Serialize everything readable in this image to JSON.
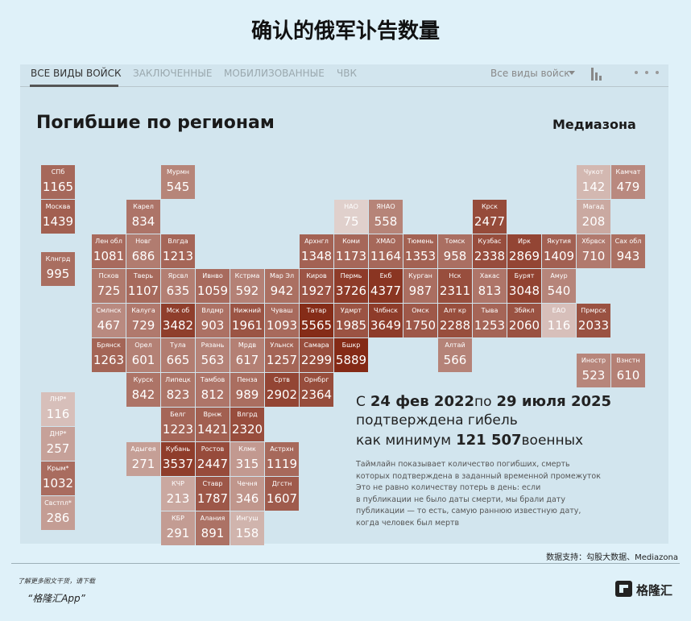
{
  "header": {
    "title": "确认的俄军讣告数量"
  },
  "tabs": [
    "ВСЕ ВИДЫ ВОЙСК",
    "ЗАКЛЮЧЕННЫЕ",
    "МОБИЛИЗОВАННЫЕ",
    "ЧВК"
  ],
  "filter": "Все виды войск",
  "heading": "Погибшие по регионам",
  "brand": "Медиазона",
  "tiles": [
    {
      "label": "СПб",
      "value": 1165
    },
    {
      "label": "Мурмн",
      "value": 545
    },
    {
      "label": "Чукот",
      "value": 142
    },
    {
      "label": "Камчат",
      "value": 479
    },
    {
      "label": "Москва",
      "value": 1439
    },
    {
      "label": "Карел",
      "value": 834
    },
    {
      "label": "НАО",
      "value": 75
    },
    {
      "label": "ЯНАО",
      "value": 558
    },
    {
      "label": "Крск",
      "value": 2477
    },
    {
      "label": "Магад",
      "value": 208
    },
    {
      "label": "Лен обл",
      "value": 1081
    },
    {
      "label": "Новг",
      "value": 686
    },
    {
      "label": "Влгда",
      "value": 1213
    },
    {
      "label": "Архнгл",
      "value": 1348
    },
    {
      "label": "Коми",
      "value": 1173
    },
    {
      "label": "ХМАО",
      "value": 1164
    },
    {
      "label": "Тюмень",
      "value": 1353
    },
    {
      "label": "Томск",
      "value": 958
    },
    {
      "label": "Кузбас",
      "value": 2338
    },
    {
      "label": "Ирк",
      "value": 2869
    },
    {
      "label": "Якутия",
      "value": 1409
    },
    {
      "label": "Хбрвск",
      "value": 710
    },
    {
      "label": "Сах обл",
      "value": 943
    },
    {
      "label": "Клнгрд",
      "value": 995
    },
    {
      "label": "Псков",
      "value": 725
    },
    {
      "label": "Тверь",
      "value": 1107
    },
    {
      "label": "Ярсвл",
      "value": 635
    },
    {
      "label": "Ивнво",
      "value": 1059
    },
    {
      "label": "Кстрма",
      "value": 592
    },
    {
      "label": "Мар Эл",
      "value": 942
    },
    {
      "label": "Киров",
      "value": 1927
    },
    {
      "label": "Пермь",
      "value": 3726
    },
    {
      "label": "Екб",
      "value": 4377
    },
    {
      "label": "Курган",
      "value": 987
    },
    {
      "label": "Нск",
      "value": 2311
    },
    {
      "label": "Хакас",
      "value": 813
    },
    {
      "label": "Бурят",
      "value": 3048
    },
    {
      "label": "Амур",
      "value": 540
    },
    {
      "label": "Смлнск",
      "value": 467
    },
    {
      "label": "Калуга",
      "value": 729
    },
    {
      "label": "Мск об",
      "value": 3482
    },
    {
      "label": "Влдмр",
      "value": 903
    },
    {
      "label": "Нижний",
      "value": 1961
    },
    {
      "label": "Чуваш",
      "value": 1093
    },
    {
      "label": "Татар",
      "value": 5565
    },
    {
      "label": "Удмрт",
      "value": 1985
    },
    {
      "label": "Члбнск",
      "value": 3649
    },
    {
      "label": "Омск",
      "value": 1750
    },
    {
      "label": "Алт кр",
      "value": 2288
    },
    {
      "label": "Тыва",
      "value": 1253
    },
    {
      "label": "Збйкл",
      "value": 2060
    },
    {
      "label": "ЕАО",
      "value": 116
    },
    {
      "label": "Прмрск",
      "value": 2033
    },
    {
      "label": "Брянск",
      "value": 1263
    },
    {
      "label": "Орел",
      "value": 601
    },
    {
      "label": "Тула",
      "value": 665
    },
    {
      "label": "Рязань",
      "value": 563
    },
    {
      "label": "Мрдв",
      "value": 617
    },
    {
      "label": "Ульнск",
      "value": 1257
    },
    {
      "label": "Самара",
      "value": 2299
    },
    {
      "label": "Бшкр",
      "value": 5889
    },
    {
      "label": "Алтай",
      "value": 566
    },
    {
      "label": "Иностр",
      "value": 523
    },
    {
      "label": "Взнстн",
      "value": 610
    },
    {
      "label": "Курск",
      "value": 842
    },
    {
      "label": "Липецк",
      "value": 823
    },
    {
      "label": "Тамбов",
      "value": 812
    },
    {
      "label": "Пенза",
      "value": 989
    },
    {
      "label": "Сртв",
      "value": 2902
    },
    {
      "label": "Орнбрг",
      "value": 2364
    },
    {
      "label": "Белг",
      "value": 1223
    },
    {
      "label": "Врнж",
      "value": 1421
    },
    {
      "label": "Влгрд",
      "value": 2320
    },
    {
      "label": "Адыгея",
      "value": 271
    },
    {
      "label": "Кубань",
      "value": 3537
    },
    {
      "label": "Ростов",
      "value": 2447
    },
    {
      "label": "Клмк",
      "value": 315
    },
    {
      "label": "Астрхн",
      "value": 1119
    },
    {
      "label": "КЧР",
      "value": 213
    },
    {
      "label": "Ставр",
      "value": 1787
    },
    {
      "label": "Чечня",
      "value": 346
    },
    {
      "label": "Дгстн",
      "value": 1607
    },
    {
      "label": "КБР",
      "value": 291
    },
    {
      "label": "Алания",
      "value": 891
    },
    {
      "label": "Ингуш",
      "value": 158
    },
    {
      "label": "ЛНР*",
      "value": 116
    },
    {
      "label": "ДНР*",
      "value": 257
    },
    {
      "label": "Крым*",
      "value": 1032
    },
    {
      "label": "Свстпл*",
      "value": 286
    }
  ],
  "summary": [
    {
      "parts": [
        "С",
        {
          "bold": "24 фев 2022"
        },
        "по",
        {
          "bold": "29 июля 2025"
        }
      ]
    },
    {
      "parts": [
        "подтверждена гибель"
      ]
    },
    {
      "parts": [
        "как минимум",
        {
          "bold": "121 507"
        },
        "военных"
      ]
    }
  ],
  "note": [
    "Таймлайн показывает количество погибших, смерть",
    "которых подтверждена в заданный временной промежуток",
    "Это не равно количеству потерь в день: если",
    "в публикации не было даты смерти, мы брали дату",
    "публикации — то есть, самую раннюю известную дату,",
    "когда человек был мертв"
  ],
  "source": "数据支持：勾股大数据、Mediazona",
  "footer": {
    "download": "了解更多图文干货，请下载",
    "app": "“格隆汇App”",
    "logo": "格隆汇"
  }
}
